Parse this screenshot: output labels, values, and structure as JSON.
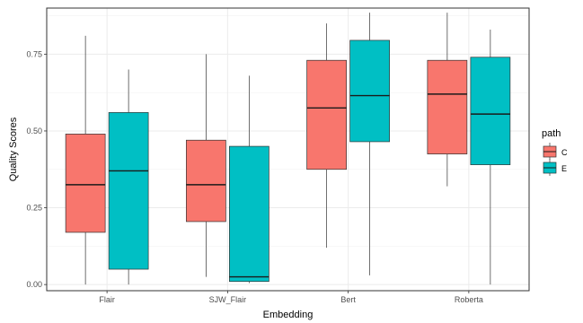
{
  "chart_data": {
    "type": "boxplot",
    "title": "",
    "xlabel": "Embedding",
    "ylabel": "Quality Scores",
    "ylim": [
      -0.02,
      0.9
    ],
    "yticks": [
      0.0,
      0.25,
      0.5,
      0.75
    ],
    "ytick_labels": [
      "0.00",
      "0.25",
      "0.50",
      "0.75"
    ],
    "categories": [
      "Flair",
      "SJW_Flair",
      "Bert",
      "Roberta"
    ],
    "grid": true,
    "legend": {
      "title": "path",
      "position": "right"
    },
    "series": [
      {
        "name": "C",
        "color": "#F8766D",
        "boxes": [
          {
            "min": 0.0,
            "q1": 0.17,
            "median": 0.325,
            "q3": 0.49,
            "max": 0.81
          },
          {
            "min": 0.025,
            "q1": 0.205,
            "median": 0.325,
            "q3": 0.47,
            "max": 0.75
          },
          {
            "min": 0.12,
            "q1": 0.375,
            "median": 0.575,
            "q3": 0.73,
            "max": 0.85
          },
          {
            "min": 0.32,
            "q1": 0.425,
            "median": 0.62,
            "q3": 0.73,
            "max": 0.885
          }
        ]
      },
      {
        "name": "E",
        "color": "#00BFC4",
        "boxes": [
          {
            "min": 0.0,
            "q1": 0.05,
            "median": 0.37,
            "q3": 0.56,
            "max": 0.7
          },
          {
            "min": 0.005,
            "q1": 0.01,
            "median": 0.025,
            "q3": 0.45,
            "max": 0.68
          },
          {
            "min": 0.03,
            "q1": 0.465,
            "median": 0.615,
            "q3": 0.795,
            "max": 0.885
          },
          {
            "min": 0.0,
            "q1": 0.39,
            "median": 0.555,
            "q3": 0.74,
            "max": 0.83
          }
        ]
      }
    ]
  }
}
